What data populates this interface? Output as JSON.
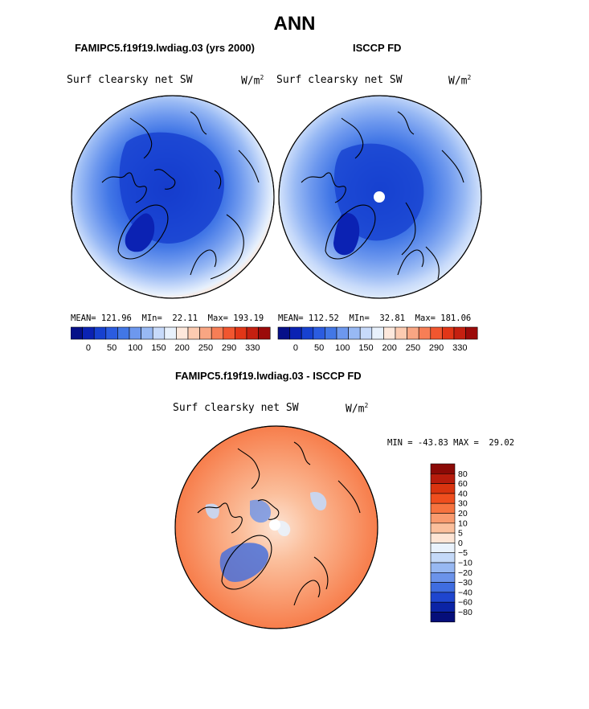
{
  "season": "ANN",
  "colors": {
    "map_bg": "#ffffff",
    "outline": "#000000",
    "blue_scale": [
      "#061089",
      "#0b22b3",
      "#1741d0",
      "#2b5ce0",
      "#4277e6",
      "#6d98ee",
      "#98b9f4",
      "#c7dafa",
      "#e8f1fc"
    ],
    "red_scale": [
      "#fde8dc",
      "#fccbb1",
      "#f9a683",
      "#f77e56",
      "#f1562f",
      "#e23617",
      "#c52010",
      "#9b0b0a"
    ]
  },
  "panels": [
    {
      "case_title": "FAMIPC5.f19f19.lwdiag.03 (yrs 2000)",
      "variable": "Surf clearsky net SW",
      "units": "W/m",
      "units_sup": "2",
      "stats": "MEAN= 121.96  MIn=  22.11  Max= 193.19"
    },
    {
      "case_title": "ISCCP FD",
      "variable": "Surf clearsky net SW",
      "units": "W/m",
      "units_sup": "2",
      "stats": "MEAN= 112.52  MIn=  32.81  Max= 181.06"
    }
  ],
  "top_colorbar": {
    "ticks": [
      "0",
      "50",
      "100",
      "150",
      "200",
      "250",
      "290",
      "330"
    ],
    "colors": [
      "#061089",
      "#0b22b3",
      "#1741d0",
      "#2b5ce0",
      "#4277e6",
      "#6d98ee",
      "#98b9f4",
      "#c7dafa",
      "#e8f1fc",
      "#fde8dc",
      "#fccbb1",
      "#f9a683",
      "#f77e56",
      "#f1562f",
      "#e23617",
      "#c52010",
      "#9b0b0a"
    ]
  },
  "diff_panel": {
    "title": "FAMIPC5.f19f19.lwdiag.03 - ISCCP FD",
    "variable": "Surf clearsky net SW",
    "units": "W/m",
    "units_sup": "2",
    "stats": "MIN = -43.83 MAX =  29.02"
  },
  "diff_colorbar": {
    "labels": [
      "80",
      "60",
      "40",
      "30",
      "20",
      "10",
      "5",
      "0",
      "−5",
      "−10",
      "−20",
      "−30",
      "−40",
      "−60",
      "−80"
    ],
    "colors": [
      "#8b0a06",
      "#b71c0c",
      "#d9340f",
      "#ef4e1e",
      "#f6733f",
      "#f99a6e",
      "#fbbf9c",
      "#fde4d4",
      "#e9f2fc",
      "#c4d9f8",
      "#97b8f2",
      "#6b93ea",
      "#3f6de0",
      "#1f46cf",
      "#0b24a6",
      "#050e7a"
    ]
  },
  "chart_data": [
    {
      "type": "heatmap",
      "title": "Surf clearsky net SW",
      "subtitle": "FAMIPC5.f19f19.lwdiag.03 (yrs 2000)",
      "units": "W/m2",
      "mean": 121.96,
      "min": 22.11,
      "max": 193.19,
      "levels": [
        0,
        50,
        100,
        150,
        200,
        250,
        290,
        330
      ]
    },
    {
      "type": "heatmap",
      "title": "Surf clearsky net SW",
      "subtitle": "ISCCP FD",
      "units": "W/m2",
      "mean": 112.52,
      "min": 32.81,
      "max": 181.06,
      "levels": [
        0,
        50,
        100,
        150,
        200,
        250,
        290,
        330
      ]
    },
    {
      "type": "heatmap",
      "title": "Surf clearsky net SW",
      "subtitle": "FAMIPC5.f19f19.lwdiag.03 - ISCCP FD",
      "units": "W/m2",
      "min": -43.83,
      "max": 29.02,
      "levels": [
        -80,
        -60,
        -40,
        -30,
        -20,
        -10,
        -5,
        0,
        5,
        10,
        20,
        30,
        40,
        60,
        80
      ]
    }
  ]
}
